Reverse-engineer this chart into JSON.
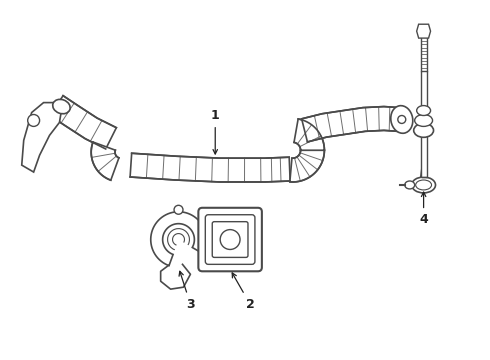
{
  "background_color": "#ffffff",
  "line_color": "#4a4a4a",
  "label_color": "#222222",
  "figure_width": 4.9,
  "figure_height": 3.6,
  "dpi": 100
}
